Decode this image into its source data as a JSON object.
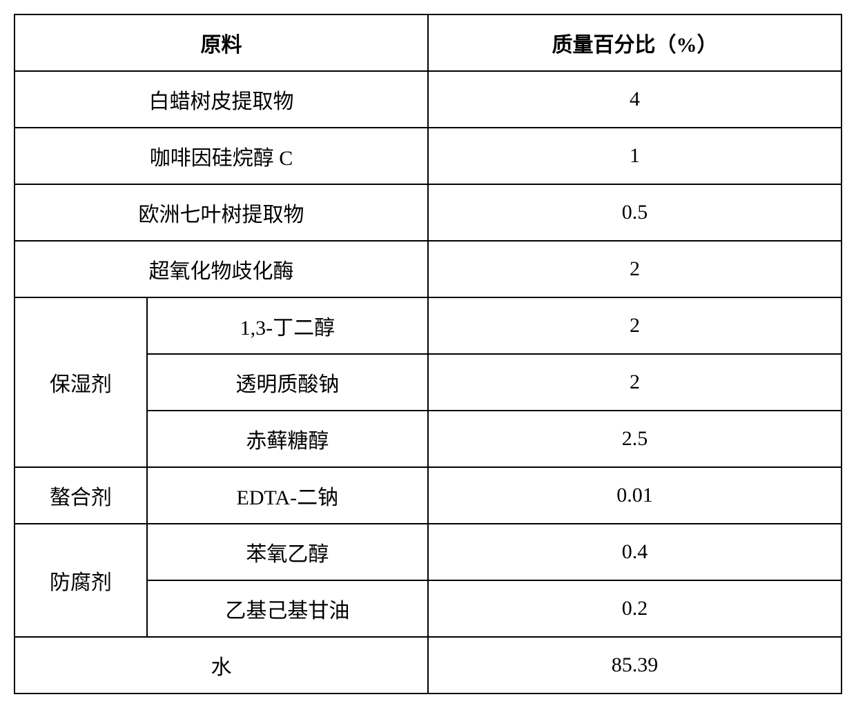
{
  "table": {
    "headers": {
      "ingredient": "原料",
      "percentage": "质量百分比（%）"
    },
    "rows": [
      {
        "category": null,
        "ingredient": "白蜡树皮提取物",
        "percentage": "4"
      },
      {
        "category": null,
        "ingredient": "咖啡因硅烷醇 C",
        "percentage": "1"
      },
      {
        "category": null,
        "ingredient": "欧洲七叶树提取物",
        "percentage": "0.5"
      },
      {
        "category": null,
        "ingredient": "超氧化物歧化酶",
        "percentage": "2"
      },
      {
        "category": "保湿剂",
        "ingredient": "1,3-丁二醇",
        "percentage": "2"
      },
      {
        "category": null,
        "ingredient": "透明质酸钠",
        "percentage": "2"
      },
      {
        "category": null,
        "ingredient": "赤藓糖醇",
        "percentage": "2.5"
      },
      {
        "category": "螯合剂",
        "ingredient": "EDTA-二钠",
        "percentage": "0.01"
      },
      {
        "category": "防腐剂",
        "ingredient": "苯氧乙醇",
        "percentage": "0.4"
      },
      {
        "category": null,
        "ingredient": "乙基己基甘油",
        "percentage": "0.2"
      },
      {
        "category": null,
        "ingredient": "水",
        "percentage": "85.39"
      }
    ],
    "styling": {
      "border_color": "#000000",
      "border_width": 2,
      "background_color": "#ffffff",
      "text_color": "#000000",
      "font_size": 30,
      "header_font_weight": "bold",
      "cell_padding_vertical": 18,
      "cell_padding_horizontal": 10,
      "column_widths": {
        "category": "16%",
        "ingredient": "34%",
        "percentage": "50%"
      }
    }
  }
}
